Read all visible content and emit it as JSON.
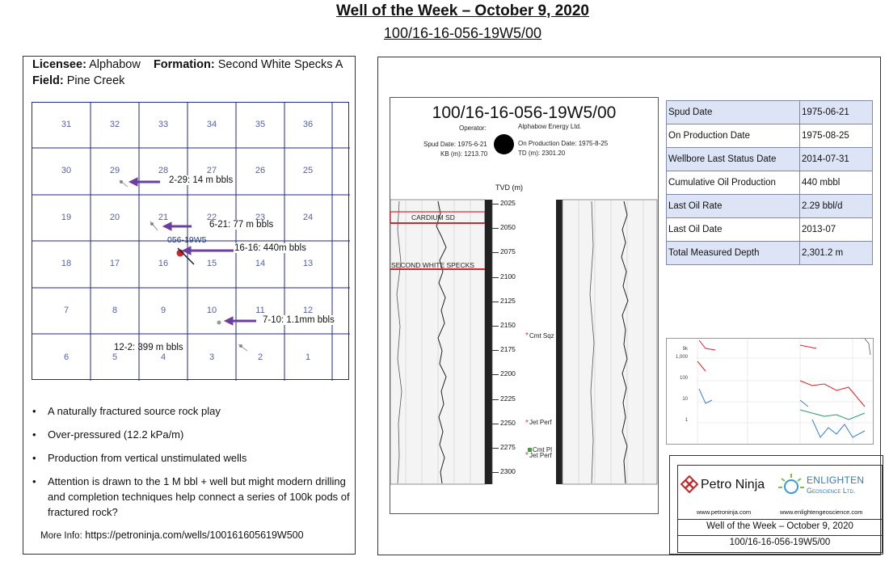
{
  "header": {
    "title": "Well of the Week – October 9, 2020",
    "uwi": "100/16-16-056-19W5/00"
  },
  "well_info": {
    "licensee_label": "Licensee:",
    "licensee": "Alphabow",
    "formation_label": "Formation:",
    "formation": "Second White Specks A",
    "field_label": "Field:",
    "field": "Pine Creek"
  },
  "map": {
    "sections": [
      "31",
      "32",
      "33",
      "34",
      "35",
      "36",
      "30",
      "29",
      "28",
      "27",
      "26",
      "25",
      "19",
      "20",
      "21",
      "22",
      "23",
      "24",
      "18",
      "17",
      "16",
      "15",
      "14",
      "13",
      "7",
      "8",
      "9",
      "10",
      "11",
      "12",
      "6",
      "5",
      "4",
      "3",
      "2",
      "1"
    ],
    "well_label": "056-19W5",
    "annotations": [
      "2-29: 14 m bbls",
      "6-21: 77 m bbls",
      "16-16: 440m bbls",
      "7-10: 1.1mm bbls",
      "12-2: 399 m bbls"
    ]
  },
  "bullets": [
    "A naturally fractured source rock play",
    "Over-pressured (12.2 kPa/m)",
    "Production from vertical unstimulated wells",
    "Attention is drawn to the 1 M bbl + well but might modern drilling and completion techniques help connect a series of 100k pods of fractured rock?"
  ],
  "more_info": {
    "label": "More Info:",
    "url": "https://petroninja.com/wells/100161605619W500"
  },
  "log": {
    "uwi": "100/16-16-056-19W5/00",
    "operator_label": "Operator:",
    "operator": "Alphabow Energy Ltd.",
    "spud_date_text": "Spud Date: 1975-6-21",
    "kb_text": "KB (m): 1213.70",
    "on_production_text": "On Production Date: 1975-8-25",
    "td_text": "TD (m): 2301.20",
    "axis_label": "TVD (m)",
    "depth_ticks": [
      "2025",
      "2050",
      "2075",
      "2100",
      "2125",
      "2150",
      "2175",
      "2200",
      "2225",
      "2250",
      "2275",
      "2300"
    ],
    "formation_tops": [
      "CARDIUM SD",
      "SECOND WHITE SPECKS"
    ],
    "perf_labels": [
      "Cmt Sqz",
      "Jet Perf",
      "Cmt Pl",
      "Jet Perf"
    ]
  },
  "info_table": [
    {
      "key": "Spud Date",
      "value": "1975-06-21"
    },
    {
      "key": "On Production Date",
      "value": "1975-08-25"
    },
    {
      "key": "Wellbore Last Status Date",
      "value": "2014-07-31"
    },
    {
      "key": "Cumulative Oil Production",
      "value": "440 mbbl"
    },
    {
      "key": "Last Oil Rate",
      "value": "2.29 bbl/d"
    },
    {
      "key": "Last Oil Date",
      "value": "2013-07"
    },
    {
      "key": "Total Measured Depth",
      "value": "2,301.2 m"
    }
  ],
  "prod_chart": {
    "y_ticks": [
      "9k",
      "1,000",
      "100",
      "10",
      "1"
    ]
  },
  "logos": {
    "petro_ninja": "Petro Ninja",
    "enlighten_1": "ENLIGHTEN",
    "enlighten_2": "Geoscience Ltd.",
    "url1": "www.petroninja.com",
    "url2": "www.enlightengeoscience.com",
    "footer_title": "Well of the Week – October 9, 2020",
    "footer_uwi": "100/16-16-056-19W5/00"
  },
  "colors": {
    "grid_line": "#1f2a8a",
    "arrow": "#6a3fa0",
    "table_shade": "#dde4f5",
    "formation_top": "#d9252a"
  }
}
